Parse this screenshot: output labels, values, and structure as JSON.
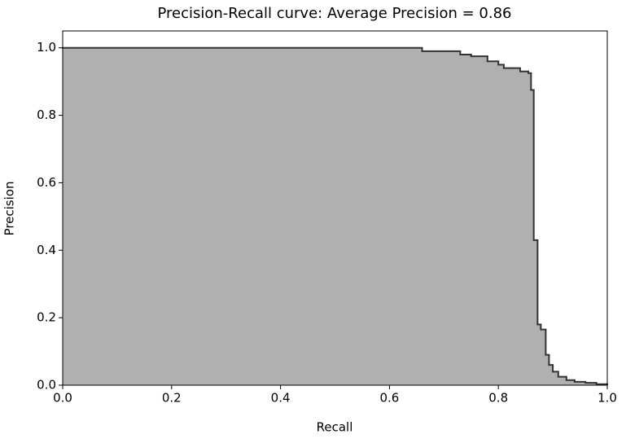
{
  "chart_data": {
    "type": "step-area",
    "title": "Precision-Recall curve: Average Precision = 0.86",
    "xlabel": "Recall",
    "ylabel": "Precision",
    "x": [
      0,
      0.66,
      0.73,
      0.75,
      0.78,
      0.8,
      0.81,
      0.84,
      0.855,
      0.86,
      0.865,
      0.872,
      0.878,
      0.887,
      0.893,
      0.9,
      0.91,
      0.925,
      0.94,
      0.96,
      0.98,
      1.0
    ],
    "values": [
      1.0,
      0.99,
      0.98,
      0.975,
      0.96,
      0.95,
      0.94,
      0.93,
      0.925,
      0.875,
      0.43,
      0.18,
      0.165,
      0.09,
      0.06,
      0.04,
      0.025,
      0.015,
      0.01,
      0.007,
      0.003,
      0.0
    ],
    "color": "#b0b0b0",
    "line_color": "#333333",
    "xlim": [
      0,
      1.0
    ],
    "ylim": [
      0,
      1.05
    ],
    "xticks": [
      {
        "value": 0,
        "label": "0.0"
      },
      {
        "value": 0.2,
        "label": "0.2"
      },
      {
        "value": 0.4,
        "label": "0.4"
      },
      {
        "value": 0.6,
        "label": "0.6"
      },
      {
        "value": 0.8,
        "label": "0.8"
      },
      {
        "value": 1.0,
        "label": "1.0"
      }
    ],
    "yticks": [
      {
        "value": 0,
        "label": "0.0"
      },
      {
        "value": 0.2,
        "label": "0.2"
      },
      {
        "value": 0.4,
        "label": "0.4"
      },
      {
        "value": 0.6,
        "label": "0.6"
      },
      {
        "value": 0.8,
        "label": "0.8"
      },
      {
        "value": 1.0,
        "label": "1.0"
      }
    ],
    "grid": false
  }
}
